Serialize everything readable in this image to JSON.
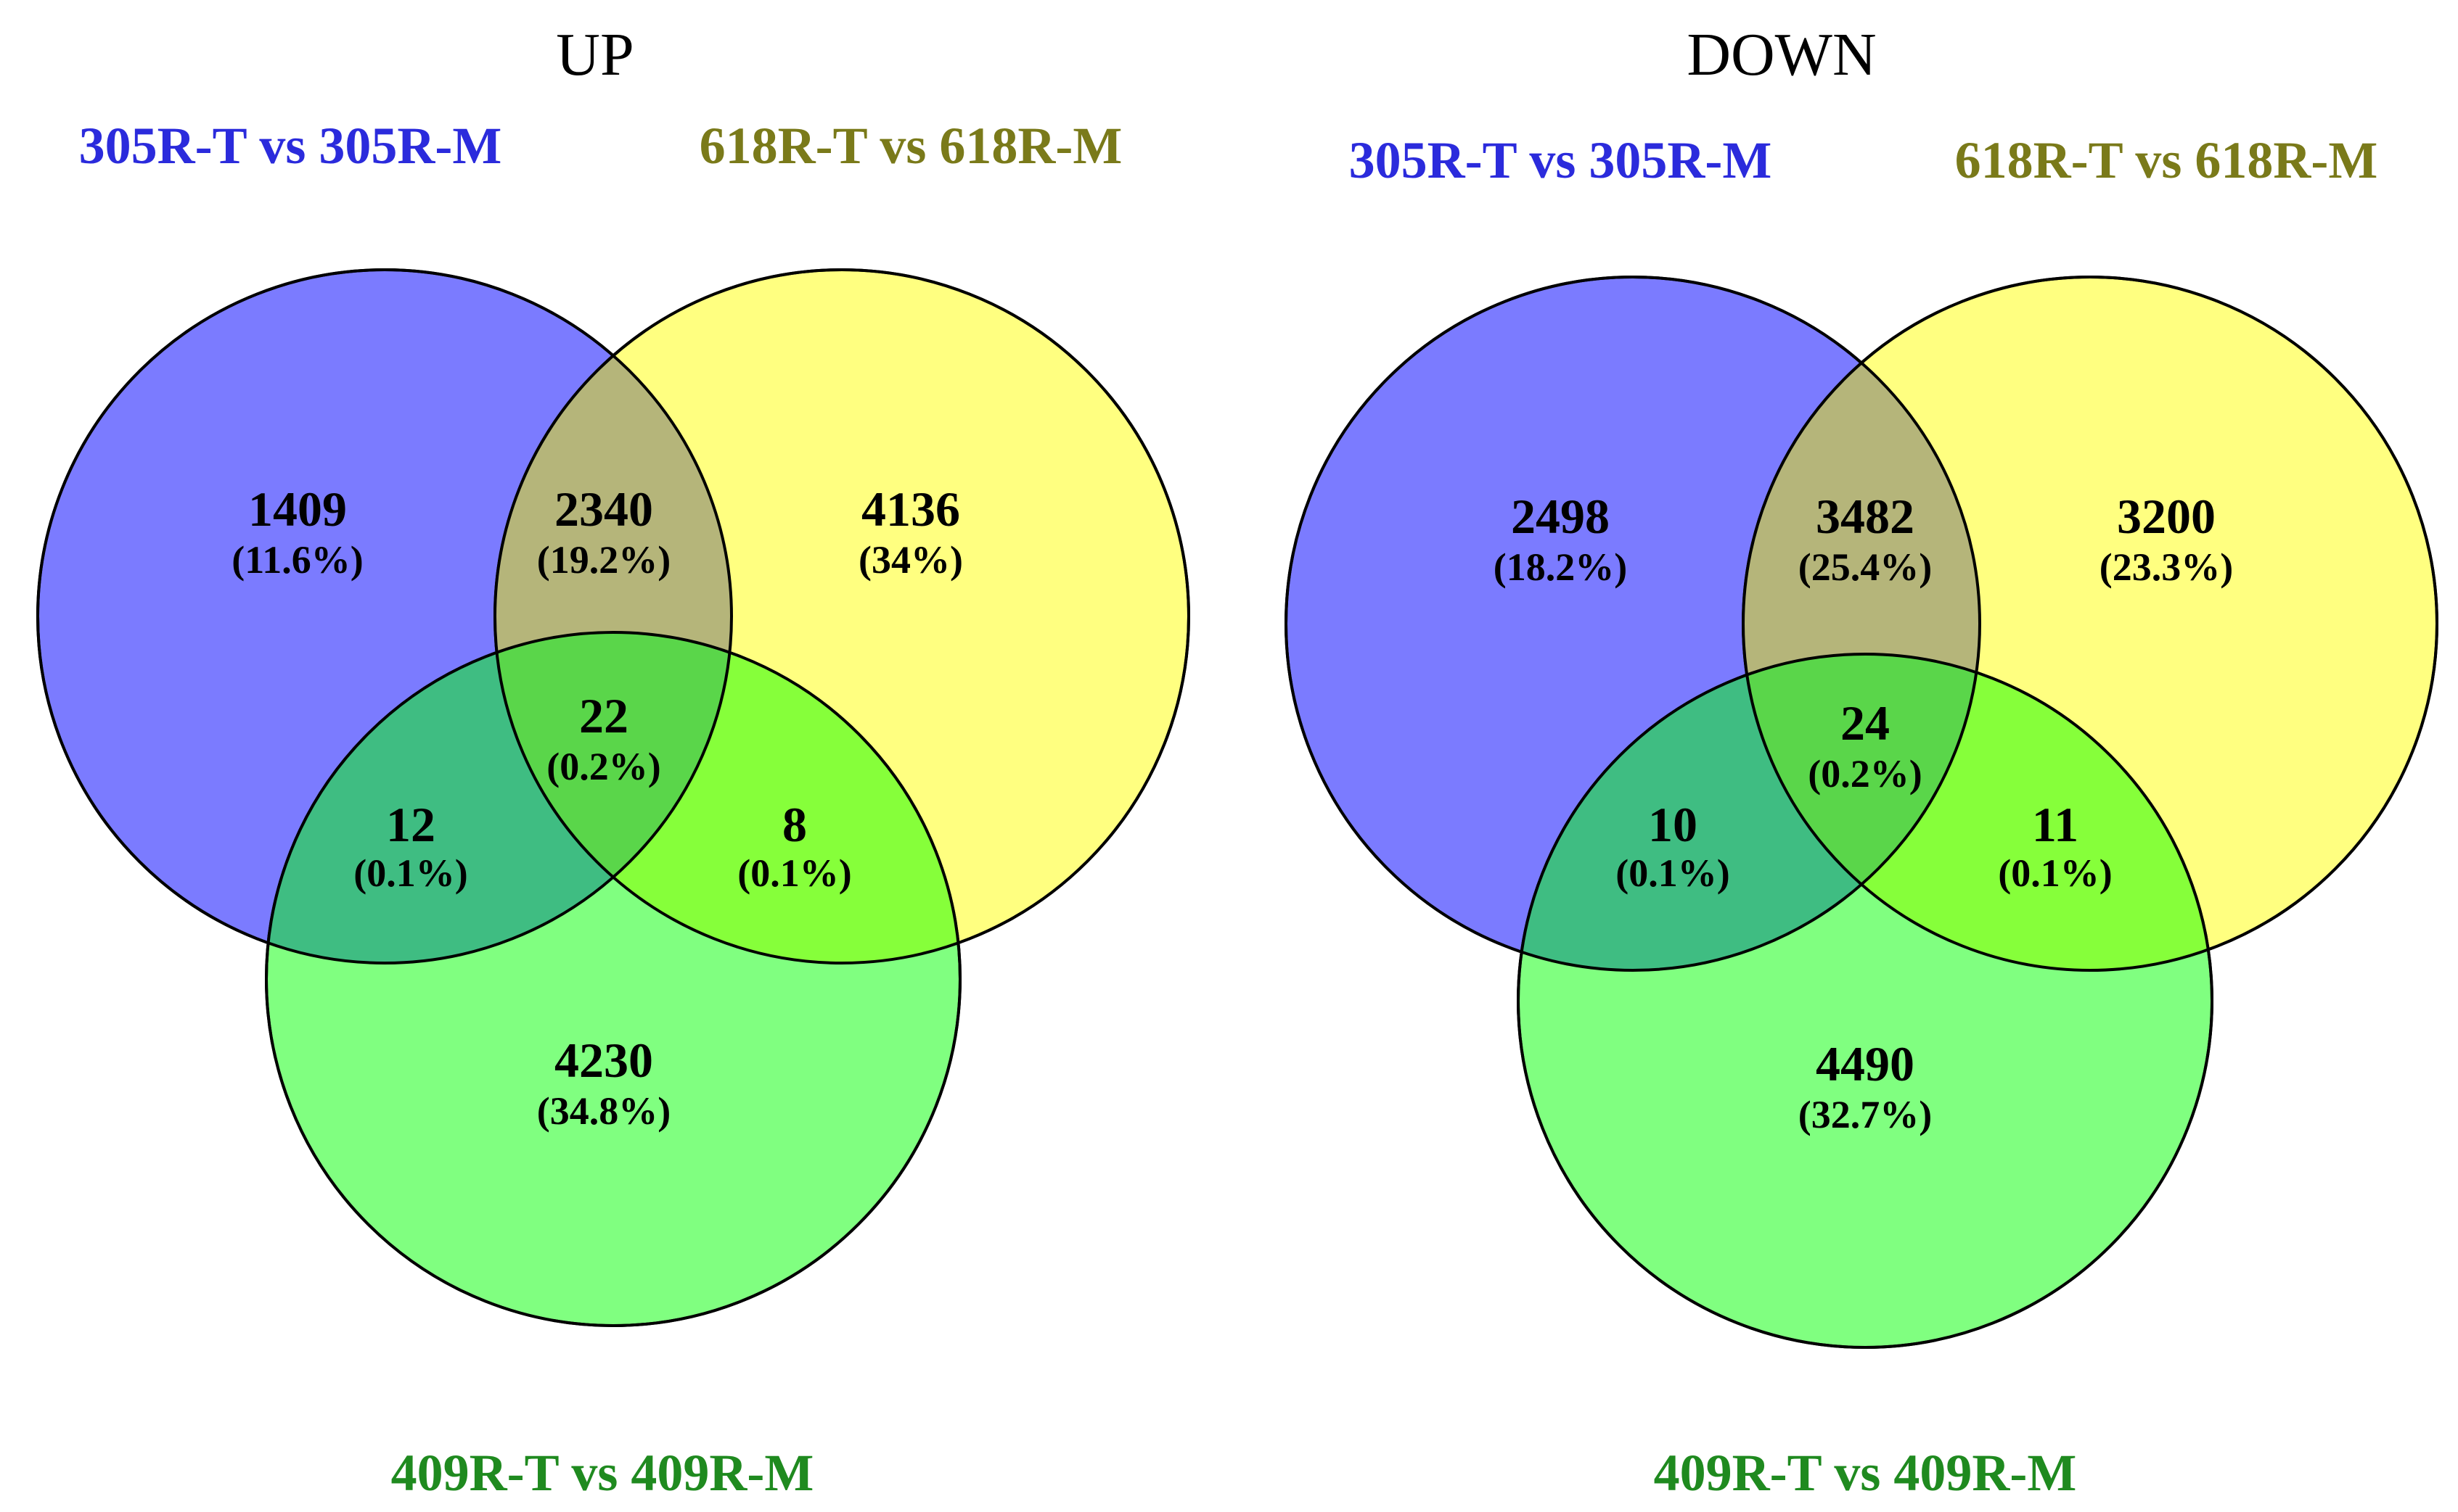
{
  "colors": {
    "set_a": "#7b7bff",
    "set_b": "#ffff80",
    "set_c": "#80ff80",
    "label_a": "#2b2bdc",
    "label_b": "#7a7a1a",
    "label_c": "#1f8a1f"
  },
  "panels": [
    {
      "title": "UP",
      "set_a_label": "305R-T vs 305R-M",
      "set_b_label": "618R-T vs 618R-M",
      "set_c_label": "409R-T vs 409R-M",
      "regions": {
        "a_only": {
          "count": "1409",
          "pct": "(11.6%)"
        },
        "ab": {
          "count": "2340",
          "pct": "(19.2%)"
        },
        "b_only": {
          "count": "4136",
          "pct": "(34%)"
        },
        "abc": {
          "count": "22",
          "pct": "(0.2%)"
        },
        "ac": {
          "count": "12",
          "pct": "(0.1%)"
        },
        "bc": {
          "count": "8",
          "pct": "(0.1%)"
        },
        "c_only": {
          "count": "4230",
          "pct": "(34.8%)"
        }
      }
    },
    {
      "title": "DOWN",
      "set_a_label": "305R-T vs 305R-M",
      "set_b_label": "618R-T vs 618R-M",
      "set_c_label": "409R-T vs 409R-M",
      "regions": {
        "a_only": {
          "count": "2498",
          "pct": "(18.2%)"
        },
        "ab": {
          "count": "3482",
          "pct": "(25.4%)"
        },
        "b_only": {
          "count": "3200",
          "pct": "(23.3%)"
        },
        "abc": {
          "count": "24",
          "pct": "(0.2%)"
        },
        "ac": {
          "count": "10",
          "pct": "(0.1%)"
        },
        "bc": {
          "count": "11",
          "pct": "(0.1%)"
        },
        "c_only": {
          "count": "4490",
          "pct": "(32.7%)"
        }
      }
    }
  ]
}
